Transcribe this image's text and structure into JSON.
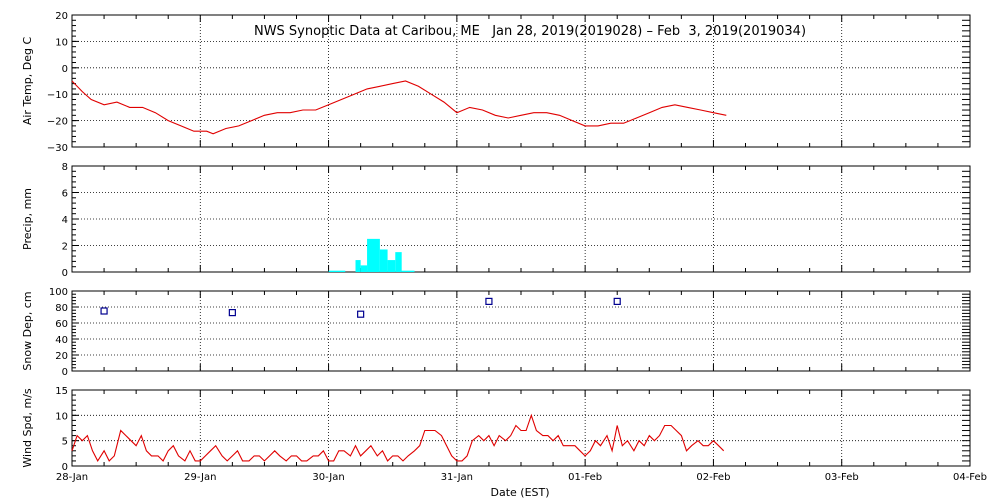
{
  "title": "NWS Synoptic Data at Caribou, ME   Jan 28, 2019(2019028) – Feb  3, 2019(2019034)",
  "colors": {
    "line": "#e00000",
    "precip": "#00ffff",
    "snow": "#000090",
    "axis": "#000000"
  },
  "chart_data": {
    "type": "line",
    "shared_x_axis": {
      "label": "Date (EST)",
      "unit": "days since 28-Jan 00:00",
      "range": [
        0,
        7
      ],
      "ticks": [
        {
          "v": 0,
          "label": "28-Jan"
        },
        {
          "v": 1,
          "label": "29-Jan"
        },
        {
          "v": 2,
          "label": "30-Jan"
        },
        {
          "v": 3,
          "label": "31-Jan"
        },
        {
          "v": 4,
          "label": "01-Feb"
        },
        {
          "v": 5,
          "label": "02-Feb"
        },
        {
          "v": 6,
          "label": "03-Feb"
        },
        {
          "v": 7,
          "label": "04-Feb"
        }
      ],
      "vertical_grid": true
    },
    "panels": [
      {
        "id": "air_temp",
        "type": "line",
        "ylabel": "Air Temp, Deg C",
        "ylim": [
          -30,
          20
        ],
        "yticks": [
          {
            "v": 20,
            "label": "20"
          },
          {
            "v": 10,
            "label": "10"
          },
          {
            "v": 0,
            "label": "0"
          },
          {
            "v": -10,
            "label": "−10"
          },
          {
            "v": -20,
            "label": "−20"
          },
          {
            "v": -30,
            "label": "−30"
          }
        ],
        "hgrid": [
          10,
          0,
          -10,
          -20
        ],
        "x": [
          0.0,
          0.08,
          0.15,
          0.25,
          0.35,
          0.45,
          0.55,
          0.65,
          0.75,
          0.85,
          0.95,
          1.05,
          1.1,
          1.2,
          1.3,
          1.4,
          1.5,
          1.6,
          1.7,
          1.8,
          1.9,
          2.0,
          2.1,
          2.2,
          2.3,
          2.4,
          2.5,
          2.6,
          2.7,
          2.8,
          2.9,
          3.0,
          3.1,
          3.2,
          3.3,
          3.4,
          3.5,
          3.6,
          3.7,
          3.8,
          3.9,
          4.0,
          4.1,
          4.2,
          4.3,
          4.4,
          4.5,
          4.6,
          4.7,
          4.8,
          4.9,
          5.0,
          5.1
        ],
        "y": [
          -5,
          -9,
          -12,
          -14,
          -13,
          -15,
          -15,
          -17,
          -20,
          -22,
          -24,
          -24,
          -25,
          -23,
          -22,
          -20,
          -18,
          -17,
          -17,
          -16,
          -16,
          -14,
          -12,
          -10,
          -8,
          -7,
          -6,
          -5,
          -7,
          -10,
          -13,
          -17,
          -15,
          -16,
          -18,
          -19,
          -18,
          -17,
          -17,
          -18,
          -20,
          -22,
          -22,
          -21,
          -21,
          -19,
          -17,
          -15,
          -14,
          -15,
          -16,
          -17,
          -18
        ]
      },
      {
        "id": "precip",
        "type": "bar",
        "ylabel": "Precip, mm",
        "ylim": [
          0,
          8
        ],
        "yticks": [
          {
            "v": 8,
            "label": "8"
          },
          {
            "v": 6,
            "label": "6"
          },
          {
            "v": 4,
            "label": "4"
          },
          {
            "v": 2,
            "label": "2"
          },
          {
            "v": 0,
            "label": "0"
          }
        ],
        "hgrid": [
          6,
          4,
          2
        ],
        "bars": [
          {
            "x0": 2.0,
            "x1": 2.13,
            "value": 0.1
          },
          {
            "x0": 2.21,
            "x1": 2.25,
            "value": 0.9
          },
          {
            "x0": 2.25,
            "x1": 2.3,
            "value": 0.5
          },
          {
            "x0": 2.3,
            "x1": 2.4,
            "value": 2.5
          },
          {
            "x0": 2.4,
            "x1": 2.46,
            "value": 1.7
          },
          {
            "x0": 2.46,
            "x1": 2.52,
            "value": 0.9
          },
          {
            "x0": 2.52,
            "x1": 2.57,
            "value": 1.5
          },
          {
            "x0": 2.57,
            "x1": 2.67,
            "value": 0.1
          }
        ]
      },
      {
        "id": "snow_depth",
        "type": "scatter",
        "ylabel": "Snow Dep, cm",
        "ylim": [
          0,
          100
        ],
        "yticks": [
          {
            "v": 100,
            "label": "100"
          },
          {
            "v": 80,
            "label": "80"
          },
          {
            "v": 60,
            "label": "60"
          },
          {
            "v": 40,
            "label": "40"
          },
          {
            "v": 20,
            "label": "20"
          },
          {
            "v": 0,
            "label": "0"
          }
        ],
        "hgrid": [
          80,
          60,
          40,
          20
        ],
        "x": [
          0.25,
          1.25,
          2.25,
          3.25,
          4.25
        ],
        "y": [
          75,
          73,
          71,
          87,
          87
        ]
      },
      {
        "id": "wind_speed",
        "type": "line",
        "ylabel": "Wind Spd, m/s",
        "ylim": [
          0,
          15
        ],
        "yticks": [
          {
            "v": 15,
            "label": "15"
          },
          {
            "v": 10,
            "label": "10"
          },
          {
            "v": 5,
            "label": "5"
          },
          {
            "v": 0,
            "label": "0"
          }
        ],
        "hgrid": [
          10,
          5
        ],
        "x": [
          0.0,
          0.04,
          0.08,
          0.12,
          0.16,
          0.2,
          0.25,
          0.29,
          0.33,
          0.38,
          0.42,
          0.46,
          0.5,
          0.54,
          0.58,
          0.62,
          0.67,
          0.71,
          0.75,
          0.79,
          0.83,
          0.88,
          0.92,
          0.96,
          1.0,
          1.04,
          1.08,
          1.12,
          1.17,
          1.21,
          1.25,
          1.29,
          1.33,
          1.38,
          1.42,
          1.46,
          1.5,
          1.54,
          1.58,
          1.62,
          1.67,
          1.71,
          1.75,
          1.79,
          1.83,
          1.88,
          1.92,
          1.96,
          2.0,
          2.04,
          2.08,
          2.12,
          2.17,
          2.21,
          2.25,
          2.29,
          2.33,
          2.38,
          2.42,
          2.46,
          2.5,
          2.54,
          2.58,
          2.62,
          2.67,
          2.71,
          2.75,
          2.79,
          2.83,
          2.88,
          2.92,
          2.96,
          3.0,
          3.04,
          3.08,
          3.12,
          3.17,
          3.21,
          3.25,
          3.29,
          3.33,
          3.38,
          3.42,
          3.46,
          3.5,
          3.54,
          3.58,
          3.62,
          3.67,
          3.71,
          3.75,
          3.79,
          3.83,
          3.88,
          3.92,
          3.96,
          4.0,
          4.04,
          4.08,
          4.12,
          4.17,
          4.21,
          4.25,
          4.29,
          4.33,
          4.38,
          4.42,
          4.46,
          4.5,
          4.54,
          4.58,
          4.62,
          4.67,
          4.71,
          4.75,
          4.79,
          4.83,
          4.88,
          4.92,
          4.96,
          5.0,
          5.04,
          5.08
        ],
        "y": [
          3,
          6,
          5,
          6,
          3,
          1,
          3,
          1,
          2,
          7,
          6,
          5,
          4,
          6,
          3,
          2,
          2,
          1,
          3,
          4,
          2,
          1,
          3,
          1,
          1,
          2,
          3,
          4,
          2,
          1,
          2,
          3,
          1,
          1,
          2,
          2,
          1,
          2,
          3,
          2,
          1,
          2,
          2,
          1,
          1,
          2,
          2,
          3,
          1,
          1,
          3,
          3,
          2,
          4,
          2,
          3,
          4,
          2,
          3,
          1,
          2,
          2,
          1,
          2,
          3,
          4,
          7,
          7,
          7,
          6,
          4,
          2,
          1,
          1,
          2,
          5,
          6,
          5,
          6,
          4,
          6,
          5,
          6,
          8,
          7,
          7,
          10,
          7,
          6,
          6,
          5,
          6,
          4,
          4,
          4,
          3,
          2,
          3,
          5,
          4,
          6,
          3,
          8,
          4,
          5,
          3,
          5,
          4,
          6,
          5,
          6,
          8,
          8,
          7,
          6,
          3,
          4,
          5,
          4,
          4,
          5,
          4,
          3
        ]
      }
    ]
  }
}
